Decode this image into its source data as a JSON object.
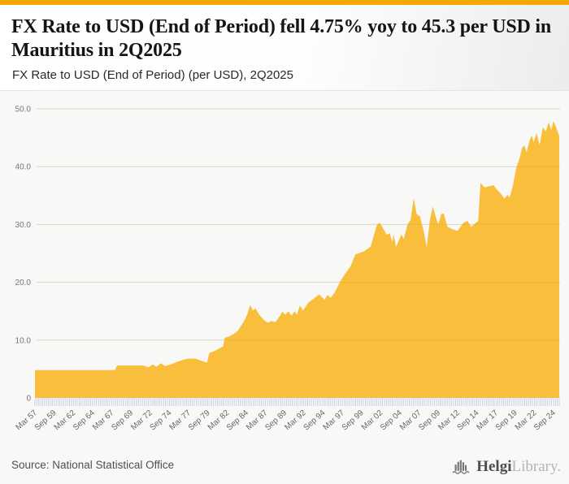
{
  "header": {
    "title": "FX Rate to USD (End of Period) fell 4.75% yoy to 45.3 per USD in Mauritius in 2Q2025",
    "subtitle": "FX Rate to USD (End of Period) (per USD), 2Q2025"
  },
  "footer": {
    "source": "Source: National Statistical Office",
    "logo_bold": "Helgi",
    "logo_light": "Library."
  },
  "colors": {
    "top_bar": "#F5A800",
    "area_fill": "#F9BF3C",
    "grid_line": "#e3e3e3",
    "zero_line": "#d8d8d8",
    "tick_mark": "#c5cfe4",
    "y_label": "#757575",
    "x_label": "#666666"
  },
  "chart_data": {
    "type": "area",
    "title": "FX Rate to USD (End of Period) (per USD), 2Q2025",
    "ylabel": "",
    "xlabel": "",
    "unit": "MUR per USD",
    "frequency": "quarterly",
    "ylim": [
      0,
      50
    ],
    "grid": "horizontal",
    "legend": "none",
    "y_ticks": [
      "0",
      "10.0",
      "20.0",
      "30.0",
      "40.0",
      "50.0"
    ],
    "x_tick_labels": [
      "Mar 57",
      "Sep 59",
      "Mar 62",
      "Sep 64",
      "Mar 67",
      "Sep 69",
      "Mar 72",
      "Sep 74",
      "Mar 77",
      "Sep 79",
      "Mar 82",
      "Sep 84",
      "Mar 87",
      "Sep 89",
      "Mar 92",
      "Sep 94",
      "Mar 97",
      "Sep 99",
      "Mar 02",
      "Sep 04",
      "Mar 07",
      "Sep 09",
      "Mar 12",
      "Sep 14",
      "Mar 17",
      "Sep 19",
      "Mar 22",
      "Sep 24"
    ],
    "x_start_year": 1957.2,
    "x_end_year": 2025.45,
    "x_label_step_years": 2.5,
    "latest_value": 45.3,
    "yoy_change_pct": -4.75,
    "series": [
      {
        "name": "FX Rate to USD (End of Period)",
        "points": [
          [
            1957.2,
            4.8
          ],
          [
            1967.6,
            4.8
          ],
          [
            1967.9,
            5.6
          ],
          [
            1971.3,
            5.6
          ],
          [
            1972.0,
            5.3
          ],
          [
            1972.5,
            5.8
          ],
          [
            1973.0,
            5.4
          ],
          [
            1973.6,
            6.0
          ],
          [
            1974.1,
            5.5
          ],
          [
            1974.9,
            5.8
          ],
          [
            1975.6,
            6.2
          ],
          [
            1976.3,
            6.5
          ],
          [
            1977.0,
            6.8
          ],
          [
            1978.1,
            6.8
          ],
          [
            1978.9,
            6.4
          ],
          [
            1979.6,
            6.1
          ],
          [
            1979.9,
            7.8
          ],
          [
            1980.4,
            8.0
          ],
          [
            1981.1,
            8.5
          ],
          [
            1981.7,
            8.9
          ],
          [
            1981.9,
            10.4
          ],
          [
            1982.4,
            10.6
          ],
          [
            1983.0,
            11.0
          ],
          [
            1983.6,
            11.6
          ],
          [
            1984.1,
            12.6
          ],
          [
            1984.6,
            13.7
          ],
          [
            1984.9,
            14.7
          ],
          [
            1985.2,
            16.1
          ],
          [
            1985.6,
            15.1
          ],
          [
            1985.9,
            15.5
          ],
          [
            1986.4,
            14.4
          ],
          [
            1987.0,
            13.5
          ],
          [
            1987.5,
            13.0
          ],
          [
            1988.0,
            13.3
          ],
          [
            1988.5,
            13.1
          ],
          [
            1989.1,
            14.2
          ],
          [
            1989.4,
            14.9
          ],
          [
            1989.8,
            14.4
          ],
          [
            1990.2,
            15.0
          ],
          [
            1990.6,
            14.2
          ],
          [
            1991.0,
            15.0
          ],
          [
            1991.3,
            14.4
          ],
          [
            1991.7,
            16.0
          ],
          [
            1992.1,
            15.1
          ],
          [
            1992.8,
            16.5
          ],
          [
            1993.3,
            17.0
          ],
          [
            1994.2,
            17.9
          ],
          [
            1994.9,
            17.0
          ],
          [
            1995.3,
            17.8
          ],
          [
            1995.7,
            17.3
          ],
          [
            1996.2,
            18.2
          ],
          [
            1997.0,
            20.3
          ],
          [
            1997.6,
            21.5
          ],
          [
            1998.3,
            22.8
          ],
          [
            1998.9,
            24.8
          ],
          [
            2000.1,
            25.4
          ],
          [
            2000.9,
            26.2
          ],
          [
            2001.7,
            29.9
          ],
          [
            2002.1,
            30.3
          ],
          [
            2003.0,
            28.2
          ],
          [
            2003.4,
            28.5
          ],
          [
            2003.7,
            26.9
          ],
          [
            2003.9,
            28.3
          ],
          [
            2004.2,
            26.1
          ],
          [
            2004.9,
            28.3
          ],
          [
            2005.2,
            27.5
          ],
          [
            2005.7,
            30.0
          ],
          [
            2006.1,
            30.8
          ],
          [
            2006.5,
            34.5
          ],
          [
            2006.9,
            31.8
          ],
          [
            2007.3,
            31.4
          ],
          [
            2007.8,
            28.9
          ],
          [
            2008.2,
            26.1
          ],
          [
            2008.6,
            30.7
          ],
          [
            2009.0,
            33.1
          ],
          [
            2009.4,
            31.2
          ],
          [
            2009.7,
            30.0
          ],
          [
            2010.1,
            31.8
          ],
          [
            2010.4,
            31.9
          ],
          [
            2010.9,
            29.6
          ],
          [
            2011.5,
            29.2
          ],
          [
            2012.2,
            28.9
          ],
          [
            2013.0,
            30.3
          ],
          [
            2013.5,
            30.6
          ],
          [
            2014.0,
            29.6
          ],
          [
            2014.6,
            30.3
          ],
          [
            2014.9,
            30.6
          ],
          [
            2015.2,
            37.2
          ],
          [
            2015.7,
            36.4
          ],
          [
            2016.3,
            36.6
          ],
          [
            2016.9,
            36.8
          ],
          [
            2017.3,
            36.1
          ],
          [
            2017.8,
            35.4
          ],
          [
            2018.3,
            34.5
          ],
          [
            2018.7,
            35.1
          ],
          [
            2019.0,
            34.7
          ],
          [
            2019.4,
            36.6
          ],
          [
            2019.9,
            40.0
          ],
          [
            2020.3,
            41.5
          ],
          [
            2020.6,
            43.2
          ],
          [
            2020.9,
            43.7
          ],
          [
            2021.2,
            42.5
          ],
          [
            2021.6,
            44.6
          ],
          [
            2021.9,
            45.4
          ],
          [
            2022.1,
            44.2
          ],
          [
            2022.5,
            45.8
          ],
          [
            2022.9,
            43.7
          ],
          [
            2023.3,
            46.8
          ],
          [
            2023.7,
            46.1
          ],
          [
            2024.1,
            47.7
          ],
          [
            2024.4,
            46.3
          ],
          [
            2024.7,
            47.9
          ],
          [
            2025.1,
            46.6
          ],
          [
            2025.45,
            45.3
          ]
        ]
      }
    ]
  }
}
